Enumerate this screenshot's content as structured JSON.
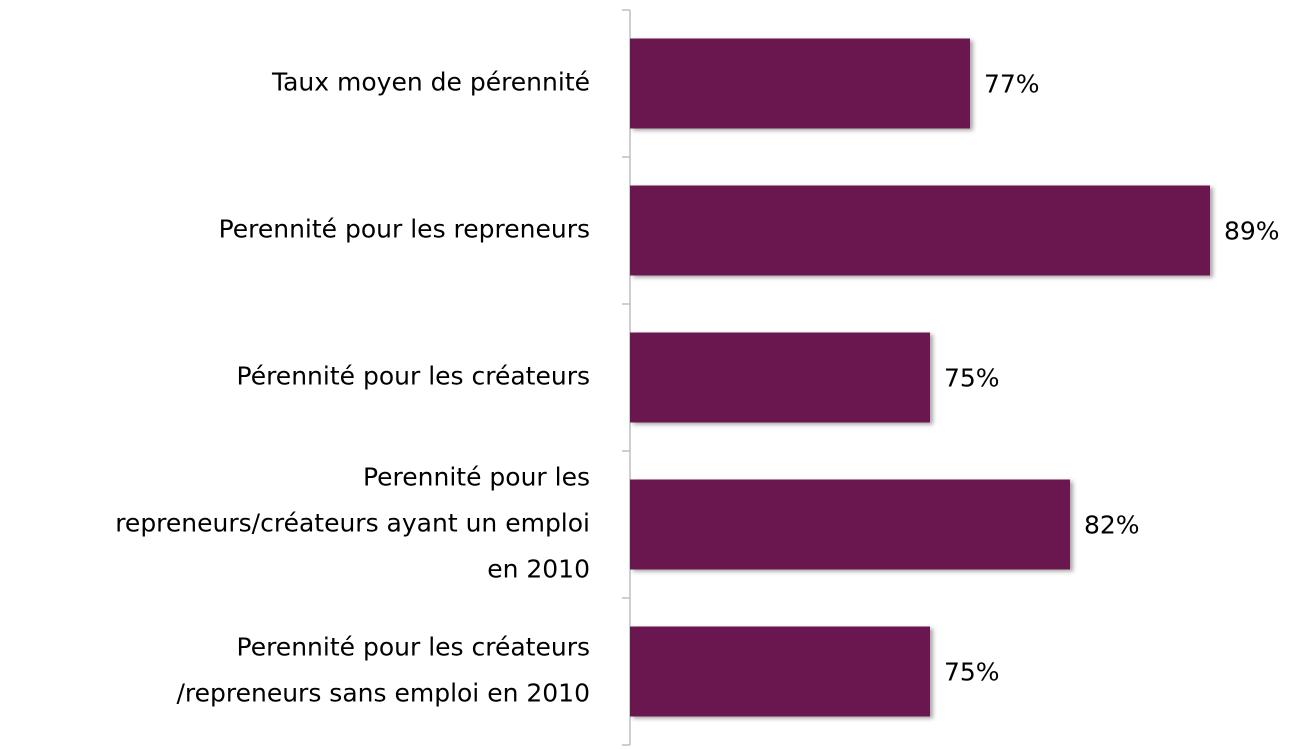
{
  "chart_data": {
    "type": "bar",
    "orientation": "horizontal",
    "categories": [
      "Taux moyen de pérennité",
      "Perennité pour les repreneurs",
      "Pérennité pour les créateurs",
      "Perennité pour les\nrepreneurs/créateurs ayant un emploi\nen 2010",
      "Perennité pour les créateurs\n/repreneurs sans emploi en 2010"
    ],
    "values": [
      77,
      89,
      75,
      82,
      75
    ],
    "value_labels": [
      "77%",
      "89%",
      "75%",
      "82%",
      "75%"
    ],
    "color": "#6b1850",
    "xlim": [
      60,
      95
    ]
  }
}
